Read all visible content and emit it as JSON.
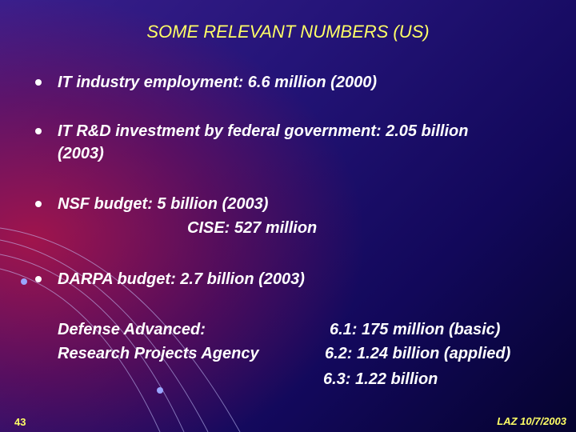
{
  "slide": {
    "title": "SOME RELEVANT NUMBERS (US)",
    "bullets": [
      {
        "lines": [
          "IT industry employment: 6.6 million (2000)"
        ]
      },
      {
        "lines": [
          "IT R&D investment by federal government: 2.05 billion",
          "(2003)"
        ]
      },
      {
        "lines": [
          "NSF budget: 5 billion (2003)",
          "CISE: 527 million"
        ]
      },
      {
        "lines": [
          "DARPA budget: 2.7 billion (2003)"
        ]
      }
    ],
    "darpa_detail": {
      "left": [
        "Defense Advanced:",
        "Research Projects Agency"
      ],
      "right": [
        "6.1: 175 million (basic)",
        "6.2: 1.24 billion (applied)",
        "6.3: 1.22 billion"
      ]
    },
    "footer": {
      "page_number": "43",
      "author_date": "LAZ  10/7/2003"
    }
  },
  "colors": {
    "title": "#ffff66",
    "text": "#ffffff",
    "footer": "#ffff66"
  }
}
